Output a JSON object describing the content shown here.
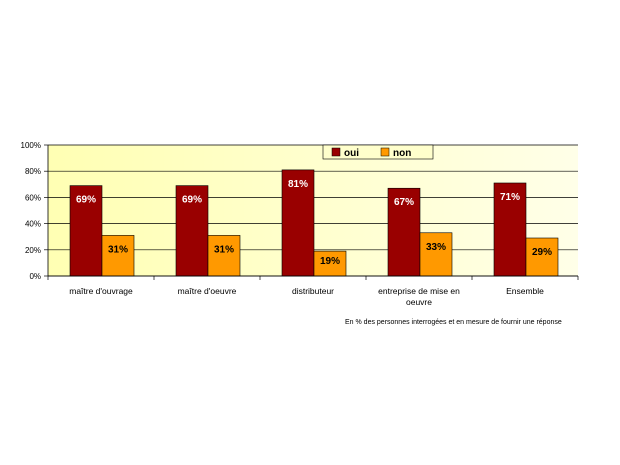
{
  "chart_data": {
    "type": "bar",
    "categories": [
      "maître d'ouvrage",
      "maître d'oeuvre",
      "distributeur",
      "entreprise de mise en oeuvre",
      "Ensemble"
    ],
    "category_lines": [
      [
        "maître d'ouvrage"
      ],
      [
        "maître d'oeuvre"
      ],
      [
        "distributeur"
      ],
      [
        "entreprise de mise en",
        "oeuvre"
      ],
      [
        "Ensemble"
      ]
    ],
    "series": [
      {
        "name": "oui",
        "values": [
          69,
          69,
          81,
          67,
          71
        ],
        "color": "#990000",
        "label_color": "#ffffff"
      },
      {
        "name": "non",
        "values": [
          31,
          31,
          19,
          33,
          29
        ],
        "color": "#ff9900",
        "label_color": "#000000"
      }
    ],
    "data_labels": [
      [
        "69%",
        "69%",
        "81%",
        "67%",
        "71%"
      ],
      [
        "31%",
        "31%",
        "19%",
        "33%",
        "29%"
      ]
    ],
    "ylim": [
      0,
      100
    ],
    "yticks": [
      "0%",
      "20%",
      "40%",
      "60%",
      "80%",
      "100%"
    ],
    "ytick_values": [
      0,
      20,
      40,
      60,
      80,
      100
    ],
    "grid": true,
    "legend_position": "top-center",
    "plot_background": "#ffffcc",
    "note": "En % des personnes interrogées et en mesure de fournir une réponse"
  }
}
